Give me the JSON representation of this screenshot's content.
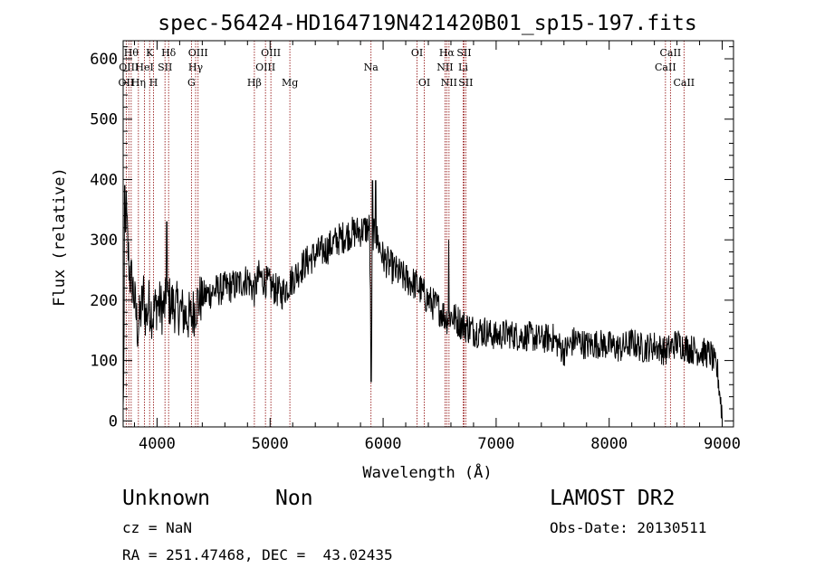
{
  "chart_data": {
    "type": "line",
    "title": "spec-56424-HD164719N421420B01_sp15-197.fits",
    "xlabel": "Wavelength (Å)",
    "ylabel": "Flux (relative)",
    "xlim": [
      3700,
      9100
    ],
    "ylim": [
      -10,
      630
    ],
    "xticks": [
      "4000",
      "5000",
      "6000",
      "7000",
      "8000",
      "9000"
    ],
    "yticks": [
      "0",
      "100",
      "200",
      "300",
      "400",
      "500",
      "600"
    ],
    "series_color": "#000000",
    "line_marker_color": "#8b0000",
    "anchors": [
      [
        3700,
        10
      ],
      [
        3710,
        170
      ],
      [
        3725,
        360
      ],
      [
        3740,
        290
      ],
      [
        3760,
        240
      ],
      [
        3780,
        230
      ],
      [
        3800,
        200
      ],
      [
        3830,
        150
      ],
      [
        3860,
        185
      ],
      [
        3880,
        210
      ],
      [
        3900,
        170
      ],
      [
        3930,
        195
      ],
      [
        3960,
        175
      ],
      [
        4000,
        195
      ],
      [
        4050,
        185
      ],
      [
        4100,
        200
      ],
      [
        4150,
        190
      ],
      [
        4200,
        185
      ],
      [
        4250,
        175
      ],
      [
        4300,
        170
      ],
      [
        4350,
        195
      ],
      [
        4400,
        205
      ],
      [
        4500,
        215
      ],
      [
        4600,
        220
      ],
      [
        4700,
        225
      ],
      [
        4800,
        235
      ],
      [
        4860,
        215
      ],
      [
        4900,
        240
      ],
      [
        5000,
        225
      ],
      [
        5100,
        210
      ],
      [
        5200,
        235
      ],
      [
        5300,
        260
      ],
      [
        5400,
        275
      ],
      [
        5500,
        285
      ],
      [
        5600,
        300
      ],
      [
        5700,
        310
      ],
      [
        5800,
        315
      ],
      [
        5880,
        320
      ],
      [
        5895,
        90
      ],
      [
        5910,
        310
      ],
      [
        5950,
        300
      ],
      [
        6000,
        270
      ],
      [
        6100,
        250
      ],
      [
        6200,
        235
      ],
      [
        6300,
        225
      ],
      [
        6400,
        200
      ],
      [
        6500,
        185
      ],
      [
        6560,
        170
      ],
      [
        6600,
        175
      ],
      [
        6700,
        160
      ],
      [
        6800,
        150
      ],
      [
        6900,
        148
      ],
      [
        7000,
        140
      ],
      [
        7100,
        145
      ],
      [
        7200,
        140
      ],
      [
        7300,
        140
      ],
      [
        7400,
        135
      ],
      [
        7500,
        138
      ],
      [
        7600,
        115
      ],
      [
        7700,
        135
      ],
      [
        7800,
        125
      ],
      [
        7900,
        128
      ],
      [
        8000,
        125
      ],
      [
        8100,
        120
      ],
      [
        8200,
        130
      ],
      [
        8300,
        120
      ],
      [
        8400,
        125
      ],
      [
        8500,
        115
      ],
      [
        8600,
        130
      ],
      [
        8700,
        120
      ],
      [
        8800,
        115
      ],
      [
        8900,
        110
      ],
      [
        8960,
        80
      ],
      [
        9000,
        10
      ]
    ],
    "noise_amplitude": 28,
    "spikes": [
      [
        3715,
        390
      ],
      [
        4085,
        330
      ],
      [
        5895,
        65
      ],
      [
        5905,
        398
      ],
      [
        5935,
        398
      ],
      [
        6580,
        300
      ]
    ],
    "lines": [
      {
        "x": 3727,
        "labels": [
          {
            "text": "OII",
            "row": 2
          }
        ]
      },
      {
        "x": 3750,
        "labels": [
          {
            "text": "OIII",
            "row": 1
          }
        ]
      },
      {
        "x": 3771,
        "labels": [
          {
            "text": "Hθ",
            "row": 0
          }
        ]
      },
      {
        "x": 3835,
        "labels": [
          {
            "text": "Hη",
            "row": 2
          }
        ]
      },
      {
        "x": 3889,
        "labels": [
          {
            "text": "HeI",
            "row": 1
          }
        ]
      },
      {
        "x": 3934,
        "labels": [
          {
            "text": "K",
            "row": 0
          }
        ]
      },
      {
        "x": 3969,
        "labels": [
          {
            "text": "H",
            "row": 2
          }
        ]
      },
      {
        "x": 4070,
        "labels": [
          {
            "text": "SII",
            "row": 1
          }
        ]
      },
      {
        "x": 4102,
        "labels": [
          {
            "text": "Hδ",
            "row": 0
          }
        ]
      },
      {
        "x": 4304,
        "labels": [
          {
            "text": "G",
            "row": 2
          }
        ]
      },
      {
        "x": 4341,
        "labels": [
          {
            "text": "Hγ",
            "row": 1
          }
        ]
      },
      {
        "x": 4363,
        "labels": [
          {
            "text": "OIII",
            "row": 0
          }
        ]
      },
      {
        "x": 4861,
        "labels": [
          {
            "text": "Hβ",
            "row": 2
          }
        ]
      },
      {
        "x": 4959,
        "labels": [
          {
            "text": "OIII",
            "row": 1
          }
        ]
      },
      {
        "x": 5007,
        "labels": [
          {
            "text": "OIII",
            "row": 0
          }
        ]
      },
      {
        "x": 5175,
        "labels": [
          {
            "text": "Mg",
            "row": 2
          }
        ]
      },
      {
        "x": 5893,
        "labels": [
          {
            "text": "Na",
            "row": 1
          }
        ]
      },
      {
        "x": 6300,
        "labels": [
          {
            "text": "OI",
            "row": 0
          }
        ]
      },
      {
        "x": 6364,
        "labels": [
          {
            "text": "OI",
            "row": 2
          }
        ]
      },
      {
        "x": 6548,
        "labels": [
          {
            "text": "NII",
            "row": 1
          }
        ]
      },
      {
        "x": 6563,
        "labels": [
          {
            "text": "Hα",
            "row": 0
          }
        ]
      },
      {
        "x": 6583,
        "labels": [
          {
            "text": "NII",
            "row": 2
          }
        ]
      },
      {
        "x": 6708,
        "labels": [
          {
            "text": "Li",
            "row": 1
          }
        ]
      },
      {
        "x": 6716,
        "labels": [
          {
            "text": "SII",
            "row": 0
          }
        ]
      },
      {
        "x": 6731,
        "labels": [
          {
            "text": "SII",
            "row": 2
          }
        ]
      },
      {
        "x": 8498,
        "labels": [
          {
            "text": "CaII",
            "row": 1
          }
        ]
      },
      {
        "x": 8542,
        "labels": [
          {
            "text": "CaII",
            "row": 0
          }
        ]
      },
      {
        "x": 8662,
        "labels": [
          {
            "text": "CaII",
            "row": 2
          }
        ]
      }
    ]
  },
  "info": {
    "class_name": "Unknown",
    "subclass": "Non",
    "survey": "LAMOST DR2",
    "cz": "cz = NaN",
    "obs_date": "Obs-Date: 20130511",
    "coords": "RA = 251.47468, DEC =  43.02435"
  }
}
